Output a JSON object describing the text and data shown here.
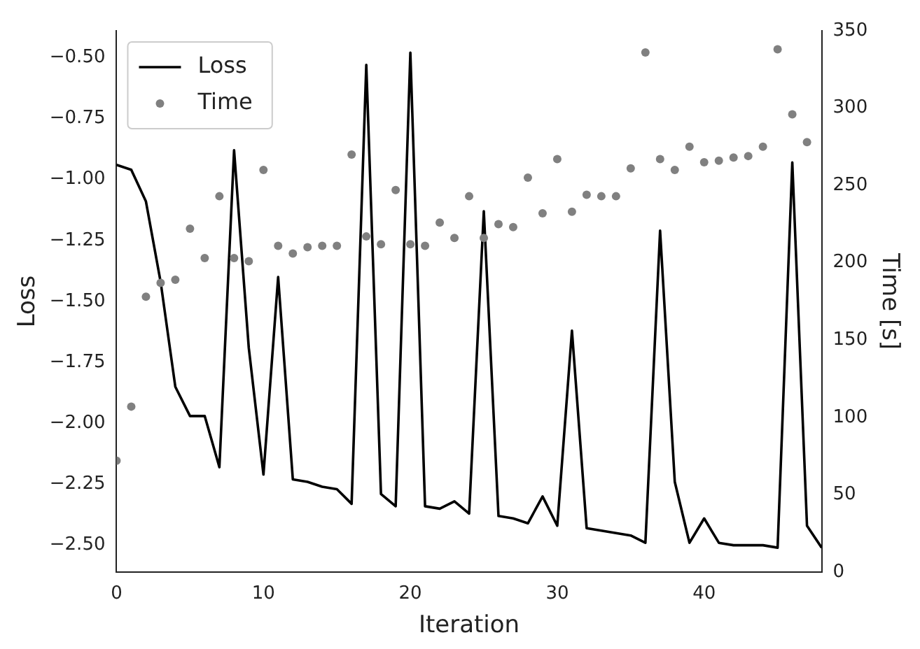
{
  "chart_data": {
    "type": "line",
    "xlabel": "Iteration",
    "ylabel": "Loss",
    "y2label": "Time [s]",
    "x": [
      0,
      1,
      2,
      3,
      4,
      5,
      6,
      7,
      8,
      9,
      10,
      11,
      12,
      13,
      14,
      15,
      16,
      17,
      18,
      19,
      20,
      21,
      22,
      23,
      24,
      25,
      26,
      27,
      28,
      29,
      30,
      31,
      32,
      33,
      34,
      35,
      36,
      37,
      38,
      39,
      40,
      41,
      42,
      43,
      44,
      45,
      46,
      47,
      48
    ],
    "series": [
      {
        "name": "Loss",
        "type": "line",
        "color": "#000000",
        "marker": "none",
        "values": [
          -0.94,
          -0.96,
          -1.09,
          -1.42,
          -1.85,
          -1.97,
          -1.97,
          -2.18,
          -0.88,
          -1.69,
          -2.21,
          -1.4,
          -2.23,
          -2.24,
          -2.26,
          -2.27,
          -2.33,
          -0.53,
          -2.29,
          -2.34,
          -0.48,
          -2.34,
          -2.35,
          -2.32,
          -2.37,
          -1.13,
          -2.38,
          -2.39,
          -2.41,
          -2.3,
          -2.42,
          -1.62,
          -2.43,
          -2.44,
          -2.45,
          -2.46,
          -2.49,
          -1.21,
          -2.24,
          -2.49,
          -2.39,
          -2.49,
          -2.5,
          -2.5,
          -2.5,
          -2.51,
          -0.93,
          -2.42,
          -2.51
        ]
      },
      {
        "name": "Time",
        "type": "scatter",
        "axis": "y2",
        "color": "#808080",
        "marker": "circle",
        "values": [
          72,
          107,
          178,
          187,
          189,
          222,
          203,
          243,
          203,
          201,
          260,
          211,
          206,
          210,
          211,
          211,
          270,
          217,
          212,
          247,
          212,
          211,
          226,
          216,
          243,
          216,
          225,
          223,
          255,
          232,
          267,
          233,
          244,
          243,
          243,
          261,
          336,
          267,
          260,
          275,
          265,
          266,
          268,
          269,
          275,
          338,
          296,
          278,
          null
        ]
      }
    ],
    "xlim": [
      0,
      48
    ],
    "xticks": [
      0,
      10,
      20,
      30,
      40
    ],
    "ylim": [
      -2.61,
      -0.39
    ],
    "yticks": [
      {
        "value": -2.5,
        "label": "−2.50"
      },
      {
        "value": -2.25,
        "label": "−2.25"
      },
      {
        "value": -2,
        "label": "−2.00"
      },
      {
        "value": -1.75,
        "label": "−1.75"
      },
      {
        "value": -1.5,
        "label": "−1.50"
      },
      {
        "value": -1.25,
        "label": "−1.25"
      },
      {
        "value": -1,
        "label": "−1.00"
      },
      {
        "value": -0.75,
        "label": "−0.75"
      },
      {
        "value": -0.5,
        "label": "−0.50"
      }
    ],
    "y2lim": [
      0,
      350
    ],
    "y2ticks": [
      0,
      50,
      100,
      150,
      200,
      250,
      300,
      350
    ],
    "grid": false,
    "legend": "top left"
  }
}
